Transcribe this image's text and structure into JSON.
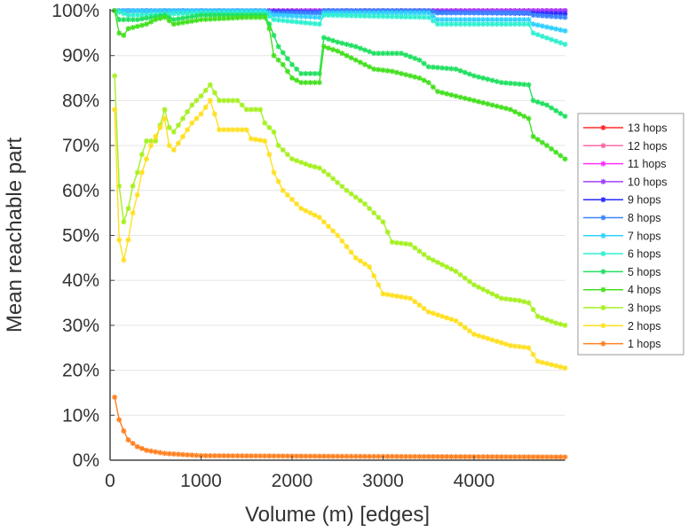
{
  "chart_data": {
    "type": "line",
    "title": "",
    "xlabel": "Volume (m) [edges]",
    "ylabel": "Mean reachable part",
    "xlim": [
      0,
      5000
    ],
    "ylim": [
      0,
      100
    ],
    "xticks": [
      "0",
      "1000",
      "2000",
      "3000",
      "4000"
    ],
    "xtick_values": [
      0,
      1000,
      2000,
      3000,
      4000
    ],
    "yticks": [
      "0%",
      "10%",
      "20%",
      "30%",
      "40%",
      "50%",
      "60%",
      "70%",
      "80%",
      "90%",
      "100%"
    ],
    "ytick_values": [
      0,
      10,
      20,
      30,
      40,
      50,
      60,
      70,
      80,
      90,
      100
    ],
    "grid": true,
    "legend_position": "right",
    "series": [
      {
        "name": "13 hops",
        "color": "#ff2a2a",
        "points": [
          [
            50,
            100
          ],
          [
            5000,
            100
          ]
        ]
      },
      {
        "name": "12 hops",
        "color": "#ff6aa8",
        "points": [
          [
            50,
            100
          ],
          [
            5000,
            100
          ]
        ]
      },
      {
        "name": "11 hops",
        "color": "#ff30ff",
        "points": [
          [
            50,
            100
          ],
          [
            5000,
            100
          ]
        ]
      },
      {
        "name": "10 hops",
        "color": "#a040ff",
        "points": [
          [
            50,
            100
          ],
          [
            5000,
            100
          ]
        ]
      },
      {
        "name": "9 hops",
        "color": "#2a2aff",
        "points": [
          [
            50,
            100
          ],
          [
            1800,
            99.8
          ],
          [
            2300,
            99.6
          ],
          [
            2350,
            100
          ],
          [
            3500,
            100
          ],
          [
            3600,
            99.6
          ],
          [
            5000,
            99.3
          ]
        ]
      },
      {
        "name": "8 hops",
        "color": "#3a86ff",
        "points": [
          [
            50,
            100
          ],
          [
            1700,
            100
          ],
          [
            1800,
            99.5
          ],
          [
            2300,
            99.5
          ],
          [
            2350,
            100
          ],
          [
            3500,
            100
          ],
          [
            3600,
            99.5
          ],
          [
            4600,
            99.5
          ],
          [
            4650,
            99
          ],
          [
            5000,
            98.5
          ]
        ]
      },
      {
        "name": "7 hops",
        "color": "#30d0ff",
        "points": [
          [
            50,
            100
          ],
          [
            1700,
            100
          ],
          [
            1800,
            99
          ],
          [
            2300,
            98.5
          ],
          [
            2350,
            99.5
          ],
          [
            3500,
            99.5
          ],
          [
            3600,
            98
          ],
          [
            4600,
            98
          ],
          [
            4650,
            97
          ],
          [
            5000,
            95.5
          ]
        ]
      },
      {
        "name": "6 hops",
        "color": "#30f0d0",
        "points": [
          [
            50,
            100
          ],
          [
            200,
            99
          ],
          [
            1000,
            99.5
          ],
          [
            1700,
            99.5
          ],
          [
            1800,
            98
          ],
          [
            2300,
            97
          ],
          [
            2350,
            99
          ],
          [
            3500,
            98.5
          ],
          [
            3600,
            97
          ],
          [
            4600,
            97
          ],
          [
            4650,
            95
          ],
          [
            5000,
            92.5
          ]
        ]
      },
      {
        "name": "5 hops",
        "color": "#20e060",
        "points": [
          [
            50,
            100
          ],
          [
            100,
            98
          ],
          [
            300,
            98
          ],
          [
            600,
            99
          ],
          [
            700,
            98
          ],
          [
            1000,
            99
          ],
          [
            1700,
            99
          ],
          [
            1750,
            97
          ],
          [
            1850,
            92
          ],
          [
            2000,
            88
          ],
          [
            2100,
            86
          ],
          [
            2300,
            86
          ],
          [
            2350,
            94
          ],
          [
            2500,
            93
          ],
          [
            2700,
            92
          ],
          [
            2900,
            90.5
          ],
          [
            3200,
            90.5
          ],
          [
            3400,
            89
          ],
          [
            3500,
            87.5
          ],
          [
            3800,
            87
          ],
          [
            4000,
            85.5
          ],
          [
            4300,
            84
          ],
          [
            4600,
            83.5
          ],
          [
            4650,
            80
          ],
          [
            4800,
            79
          ],
          [
            5000,
            76.5
          ]
        ]
      },
      {
        "name": "4 hops",
        "color": "#44e020",
        "points": [
          [
            50,
            100
          ],
          [
            100,
            95
          ],
          [
            150,
            94.5
          ],
          [
            200,
            96
          ],
          [
            400,
            97
          ],
          [
            500,
            98
          ],
          [
            600,
            98.5
          ],
          [
            700,
            97
          ],
          [
            1000,
            98
          ],
          [
            1500,
            98.5
          ],
          [
            1700,
            98.5
          ],
          [
            1750,
            96
          ],
          [
            1800,
            90
          ],
          [
            1900,
            88
          ],
          [
            2000,
            85
          ],
          [
            2100,
            84
          ],
          [
            2300,
            84
          ],
          [
            2350,
            92
          ],
          [
            2500,
            91
          ],
          [
            2700,
            89
          ],
          [
            2900,
            87
          ],
          [
            3100,
            86.5
          ],
          [
            3200,
            86
          ],
          [
            3400,
            85
          ],
          [
            3500,
            84
          ],
          [
            3600,
            82
          ],
          [
            3800,
            81
          ],
          [
            4000,
            80
          ],
          [
            4200,
            79
          ],
          [
            4400,
            78
          ],
          [
            4500,
            77
          ],
          [
            4600,
            76
          ],
          [
            4650,
            72
          ],
          [
            4800,
            70
          ],
          [
            5000,
            67
          ]
        ]
      },
      {
        "name": "3 hops",
        "color": "#a6f020",
        "points": [
          [
            50,
            85.5
          ],
          [
            100,
            61
          ],
          [
            150,
            53
          ],
          [
            200,
            56
          ],
          [
            250,
            61
          ],
          [
            300,
            64
          ],
          [
            350,
            68
          ],
          [
            400,
            71
          ],
          [
            500,
            71
          ],
          [
            600,
            78
          ],
          [
            650,
            74
          ],
          [
            700,
            73
          ],
          [
            800,
            76
          ],
          [
            900,
            79
          ],
          [
            1000,
            81
          ],
          [
            1100,
            83.5
          ],
          [
            1200,
            80
          ],
          [
            1400,
            80
          ],
          [
            1500,
            78
          ],
          [
            1650,
            78
          ],
          [
            1700,
            75
          ],
          [
            1800,
            73
          ],
          [
            1850,
            70
          ],
          [
            2000,
            67
          ],
          [
            2200,
            65.5
          ],
          [
            2300,
            65
          ],
          [
            2400,
            63.5
          ],
          [
            2600,
            60
          ],
          [
            2800,
            57
          ],
          [
            3000,
            53
          ],
          [
            3100,
            48.5
          ],
          [
            3300,
            48
          ],
          [
            3500,
            45
          ],
          [
            3800,
            42
          ],
          [
            4000,
            39
          ],
          [
            4300,
            36
          ],
          [
            4500,
            35.5
          ],
          [
            4600,
            35
          ],
          [
            4700,
            32
          ],
          [
            4900,
            30.5
          ],
          [
            5000,
            30
          ]
        ]
      },
      {
        "name": "2 hops",
        "color": "#ffe020",
        "points": [
          [
            50,
            78
          ],
          [
            100,
            49
          ],
          [
            150,
            44.5
          ],
          [
            200,
            49
          ],
          [
            250,
            55
          ],
          [
            300,
            59
          ],
          [
            350,
            64
          ],
          [
            400,
            67
          ],
          [
            450,
            70
          ],
          [
            500,
            72
          ],
          [
            600,
            76
          ],
          [
            650,
            70
          ],
          [
            700,
            69
          ],
          [
            800,
            72
          ],
          [
            900,
            75
          ],
          [
            1000,
            77
          ],
          [
            1100,
            80
          ],
          [
            1150,
            77
          ],
          [
            1200,
            73.5
          ],
          [
            1500,
            73.5
          ],
          [
            1550,
            71.5
          ],
          [
            1700,
            71
          ],
          [
            1750,
            68
          ],
          [
            1800,
            64
          ],
          [
            1900,
            60
          ],
          [
            2000,
            58
          ],
          [
            2100,
            56
          ],
          [
            2300,
            54
          ],
          [
            2500,
            50
          ],
          [
            2700,
            45
          ],
          [
            2850,
            43
          ],
          [
            3000,
            37
          ],
          [
            3300,
            36
          ],
          [
            3500,
            33
          ],
          [
            3800,
            31
          ],
          [
            4000,
            28
          ],
          [
            4400,
            25.5
          ],
          [
            4600,
            25
          ],
          [
            4700,
            22
          ],
          [
            4900,
            21
          ],
          [
            5000,
            20.5
          ]
        ]
      },
      {
        "name": "1 hops",
        "color": "#ff8020",
        "points": [
          [
            50,
            14
          ],
          [
            100,
            9
          ],
          [
            150,
            6.5
          ],
          [
            200,
            4.5
          ],
          [
            300,
            3
          ],
          [
            400,
            2.2
          ],
          [
            600,
            1.5
          ],
          [
            1000,
            1
          ],
          [
            2000,
            0.9
          ],
          [
            5000,
            0.7
          ]
        ]
      }
    ]
  }
}
